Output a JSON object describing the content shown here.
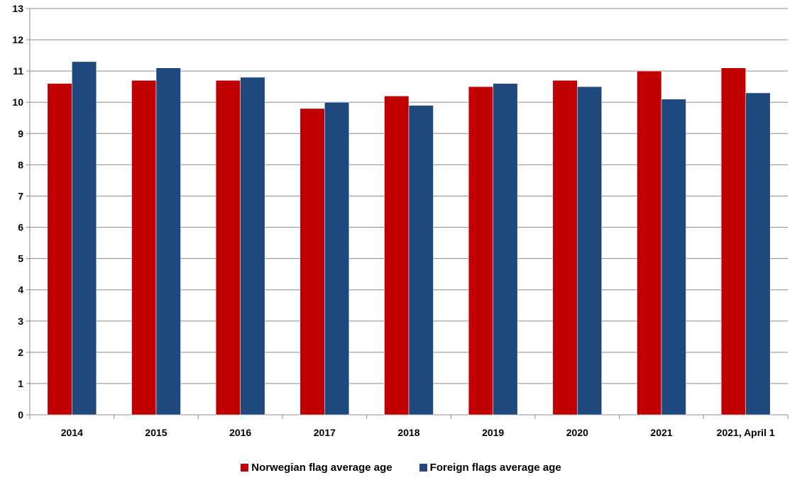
{
  "chart_data": {
    "type": "bar",
    "categories": [
      "2014",
      "2015",
      "2016",
      "2017",
      "2018",
      "2019",
      "2020",
      "2021",
      "2021, April 1"
    ],
    "series": [
      {
        "name": "Norwegian flag average age",
        "color": "#c00000",
        "values": [
          10.6,
          10.7,
          10.7,
          9.8,
          10.2,
          10.5,
          10.7,
          11.0,
          11.1
        ]
      },
      {
        "name": "Foreign flags average age",
        "color": "#1f497d",
        "values": [
          11.3,
          11.1,
          10.8,
          10.0,
          9.9,
          10.6,
          10.5,
          10.1,
          10.3
        ]
      }
    ],
    "yticks": [
      "0",
      "1",
      "2",
      "3",
      "4",
      "5",
      "6",
      "7",
      "8",
      "9",
      "10",
      "11",
      "12",
      "13"
    ],
    "ylim": [
      0,
      13
    ],
    "grid": true,
    "legend_position": "bottom"
  }
}
